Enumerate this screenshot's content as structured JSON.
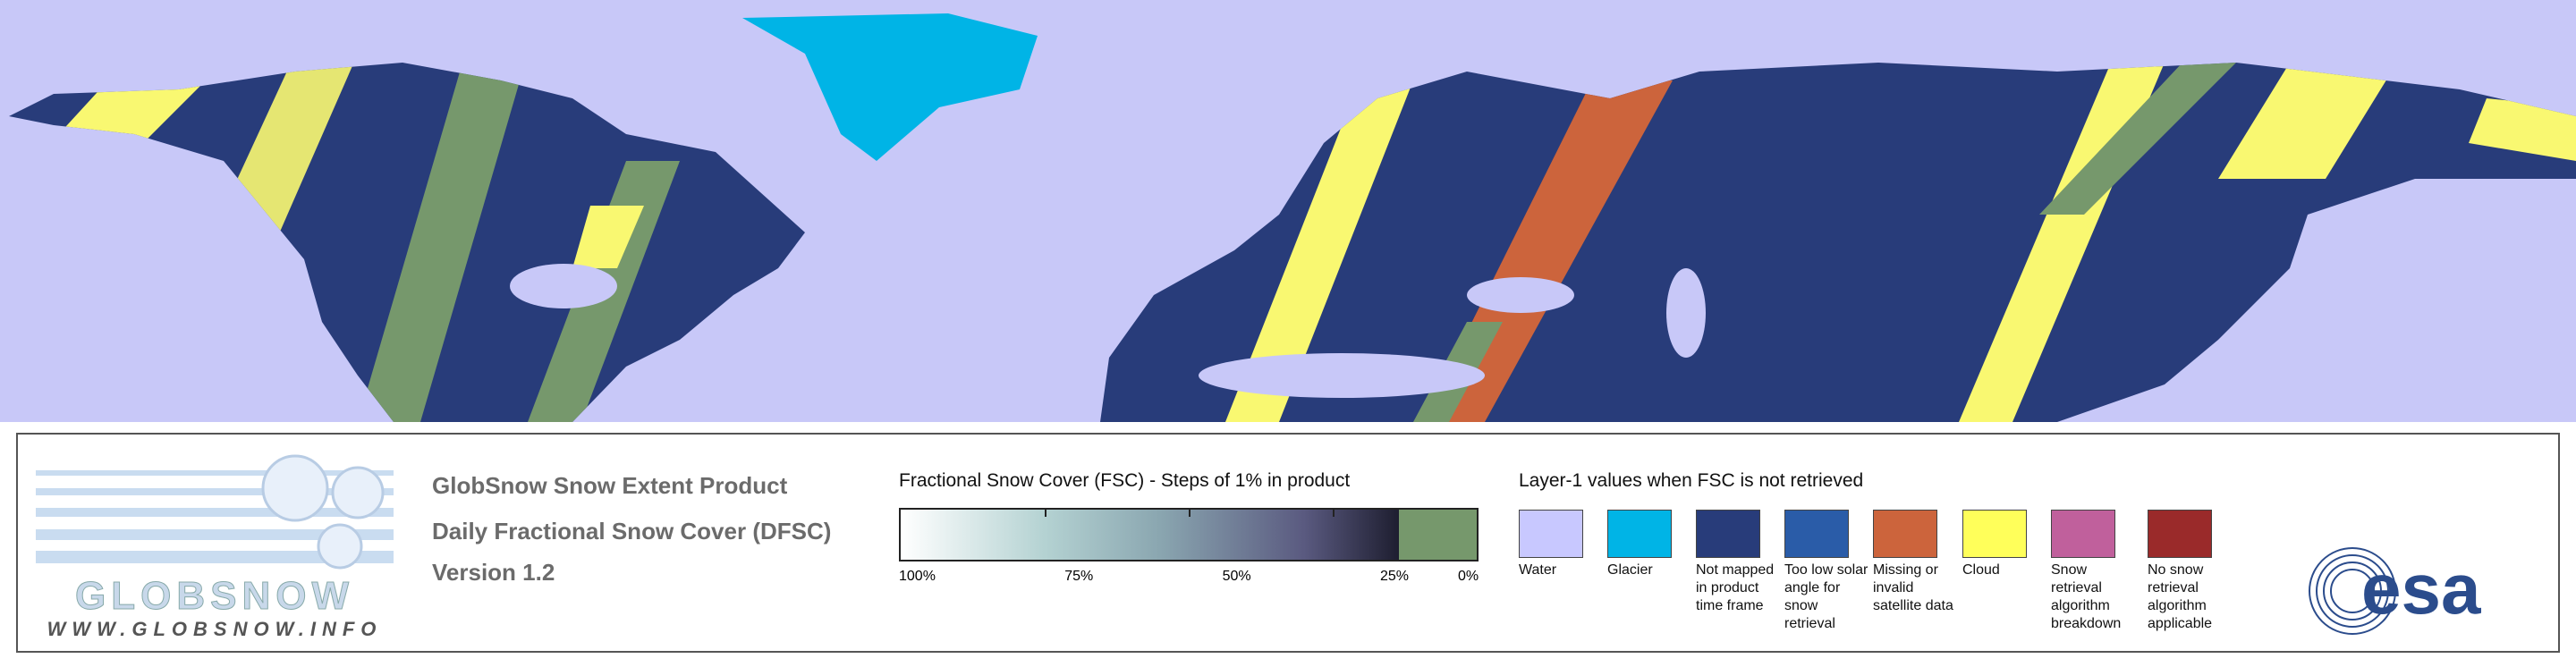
{
  "logo": {
    "name": "GLOBSNOW",
    "url": "WWW.GLOBSNOW.INFO"
  },
  "product": {
    "title": "GlobSnow Snow Extent Product",
    "subtitle": "Daily Fractional Snow Cover (DFSC)",
    "version": "Version 1.2"
  },
  "fsc_legend": {
    "title": "Fractional Snow Cover (FSC) - Steps of 1% in product",
    "ticks": [
      "100%",
      "75%",
      "50%",
      "25%",
      "0%"
    ]
  },
  "layer1_legend": {
    "title": "Layer-1 values when FSC is not retrieved",
    "items": [
      {
        "label": "Water",
        "color": "#c8c8ff"
      },
      {
        "label": "Glacier",
        "color": "#00b4e6"
      },
      {
        "label": "Not mapped in product time frame",
        "color": "#283c7a"
      },
      {
        "label": "Too low solar angle for snow retrieval",
        "color": "#2a5ca8"
      },
      {
        "label": "Missing or invalid satellite data",
        "color": "#cc643c"
      },
      {
        "label": "Cloud",
        "color": "#ffff5a"
      },
      {
        "label": "Snow retrieval algorithm breakdown",
        "color": "#c0609c"
      },
      {
        "label": "No snow retrieval algorithm applicable",
        "color": "#9a2a2a"
      }
    ]
  },
  "agency": "esa"
}
